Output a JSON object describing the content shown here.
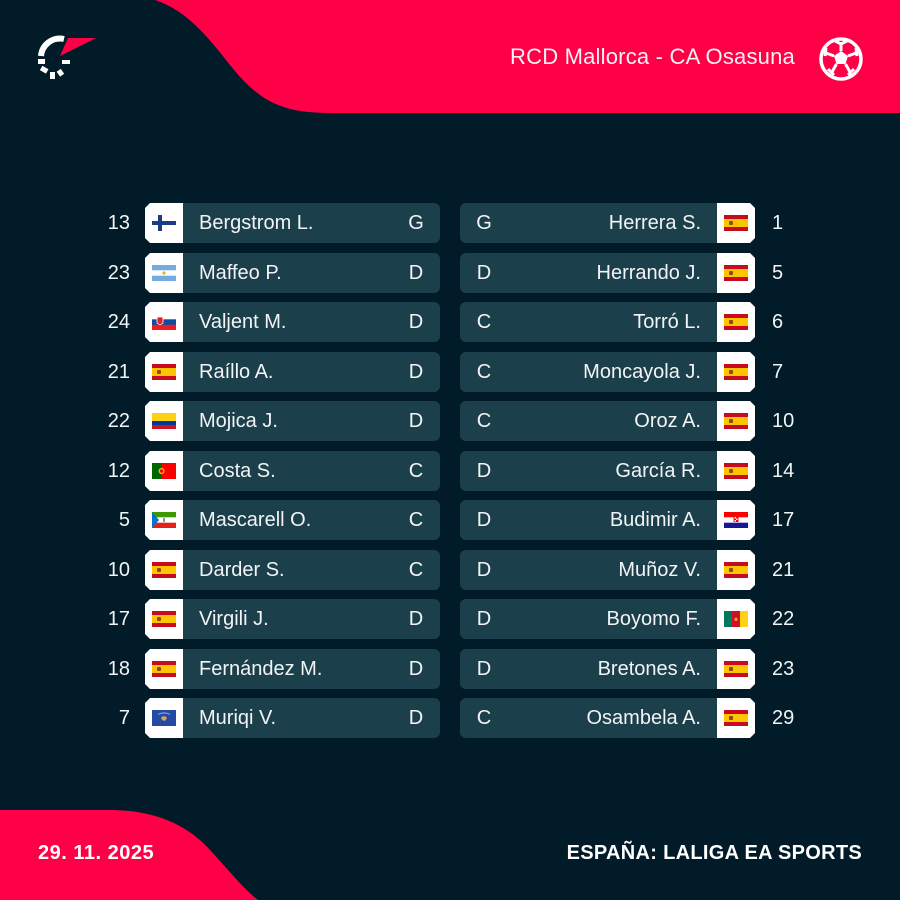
{
  "header": {
    "match_title": "RCD Mallorca - CA Osasuna",
    "logo_icon": "flashscore-logo-icon",
    "sport_icon": "football-icon"
  },
  "colors": {
    "background": "#021b28",
    "accent_red": "#ff0046",
    "row_bg": "#1c3f4c",
    "flag_cell_bg": "#ffffff",
    "text": "#f2f4f5"
  },
  "home": {
    "team": "RCD Mallorca",
    "players": [
      {
        "number": "13",
        "name": "Bergstrom L.",
        "position": "G",
        "flag": "finland"
      },
      {
        "number": "23",
        "name": "Maffeo P.",
        "position": "D",
        "flag": "argentina"
      },
      {
        "number": "24",
        "name": "Valjent M.",
        "position": "D",
        "flag": "slovakia"
      },
      {
        "number": "21",
        "name": "Raíllo A.",
        "position": "D",
        "flag": "spain"
      },
      {
        "number": "22",
        "name": "Mojica J.",
        "position": "D",
        "flag": "colombia"
      },
      {
        "number": "12",
        "name": "Costa S.",
        "position": "C",
        "flag": "portugal"
      },
      {
        "number": "5",
        "name": "Mascarell O.",
        "position": "C",
        "flag": "equatorial-guinea"
      },
      {
        "number": "10",
        "name": "Darder S.",
        "position": "C",
        "flag": "spain"
      },
      {
        "number": "17",
        "name": "Virgili J.",
        "position": "D",
        "flag": "spain"
      },
      {
        "number": "18",
        "name": "Fernández M.",
        "position": "D",
        "flag": "spain"
      },
      {
        "number": "7",
        "name": "Muriqi V.",
        "position": "D",
        "flag": "kosovo"
      }
    ]
  },
  "away": {
    "team": "CA Osasuna",
    "players": [
      {
        "number": "1",
        "name": "Herrera S.",
        "position": "G",
        "flag": "spain"
      },
      {
        "number": "5",
        "name": "Herrando J.",
        "position": "D",
        "flag": "spain"
      },
      {
        "number": "6",
        "name": "Torró L.",
        "position": "C",
        "flag": "spain"
      },
      {
        "number": "7",
        "name": "Moncayola J.",
        "position": "C",
        "flag": "spain"
      },
      {
        "number": "10",
        "name": "Oroz A.",
        "position": "C",
        "flag": "spain"
      },
      {
        "number": "14",
        "name": "García R.",
        "position": "D",
        "flag": "spain"
      },
      {
        "number": "17",
        "name": "Budimir A.",
        "position": "D",
        "flag": "croatia"
      },
      {
        "number": "21",
        "name": "Muñoz V.",
        "position": "D",
        "flag": "spain"
      },
      {
        "number": "22",
        "name": "Boyomo F.",
        "position": "D",
        "flag": "cameroon"
      },
      {
        "number": "23",
        "name": "Bretones A.",
        "position": "D",
        "flag": "spain"
      },
      {
        "number": "29",
        "name": "Osambela A.",
        "position": "C",
        "flag": "spain"
      }
    ]
  },
  "footer": {
    "date": "29. 11. 2025",
    "competition": "ESPAÑA: LALIGA EA SPORTS"
  }
}
